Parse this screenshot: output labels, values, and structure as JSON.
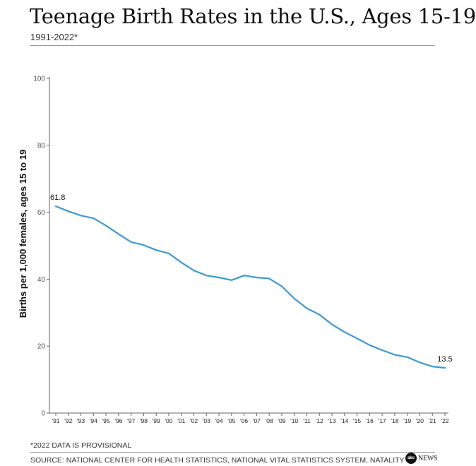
{
  "header": {
    "title": "Teenage Birth Rates in the U.S., Ages 15-19",
    "subtitle": "1991-2022*"
  },
  "footer": {
    "footnote": "*2022 DATA IS PROVISIONAL",
    "source": "SOURCE: NATIONAL CENTER FOR HEALTH STATISTICS, NATIONAL VITAL STATISTICS SYSTEM, NATALITY",
    "logo": {
      "mark": "abc",
      "text": "NEWS"
    }
  },
  "colors": {
    "line": "#3a9ad6",
    "axis": "#666666",
    "text": "#111111"
  },
  "chart_data": {
    "type": "line",
    "title": "Teenage Birth Rates in the U.S., Ages 15-19",
    "subtitle": "1991-2022*",
    "ylabel": "Births per 1,000 females, ages 15 to 19",
    "xlabel": "",
    "ylim": [
      0,
      100
    ],
    "yticks": [
      0,
      20,
      40,
      60,
      80,
      100
    ],
    "grid": false,
    "categories": [
      "'91",
      "'92",
      "'93",
      "'94",
      "'95",
      "'96",
      "'97",
      "'98",
      "'99",
      "'00",
      "'01",
      "'02",
      "'03",
      "'04",
      "'05",
      "'06",
      "'07",
      "'08",
      "'09",
      "'10",
      "'11",
      "'12",
      "'13",
      "'14",
      "'15",
      "'16",
      "'17",
      "'18",
      "'19",
      "'20",
      "'21",
      "'22"
    ],
    "series": [
      {
        "values": [
          61.8,
          60.3,
          59.0,
          58.2,
          56.0,
          53.5,
          51.1,
          50.2,
          48.7,
          47.7,
          45.0,
          42.6,
          41.1,
          40.5,
          39.7,
          41.1,
          40.5,
          40.2,
          37.9,
          34.2,
          31.3,
          29.4,
          26.5,
          24.2,
          22.3,
          20.3,
          18.8,
          17.4,
          16.7,
          15.1,
          13.9,
          13.5
        ]
      }
    ],
    "annotations": [
      {
        "index": 0,
        "label": "61.8"
      },
      {
        "index": 31,
        "label": "13.5"
      }
    ]
  }
}
